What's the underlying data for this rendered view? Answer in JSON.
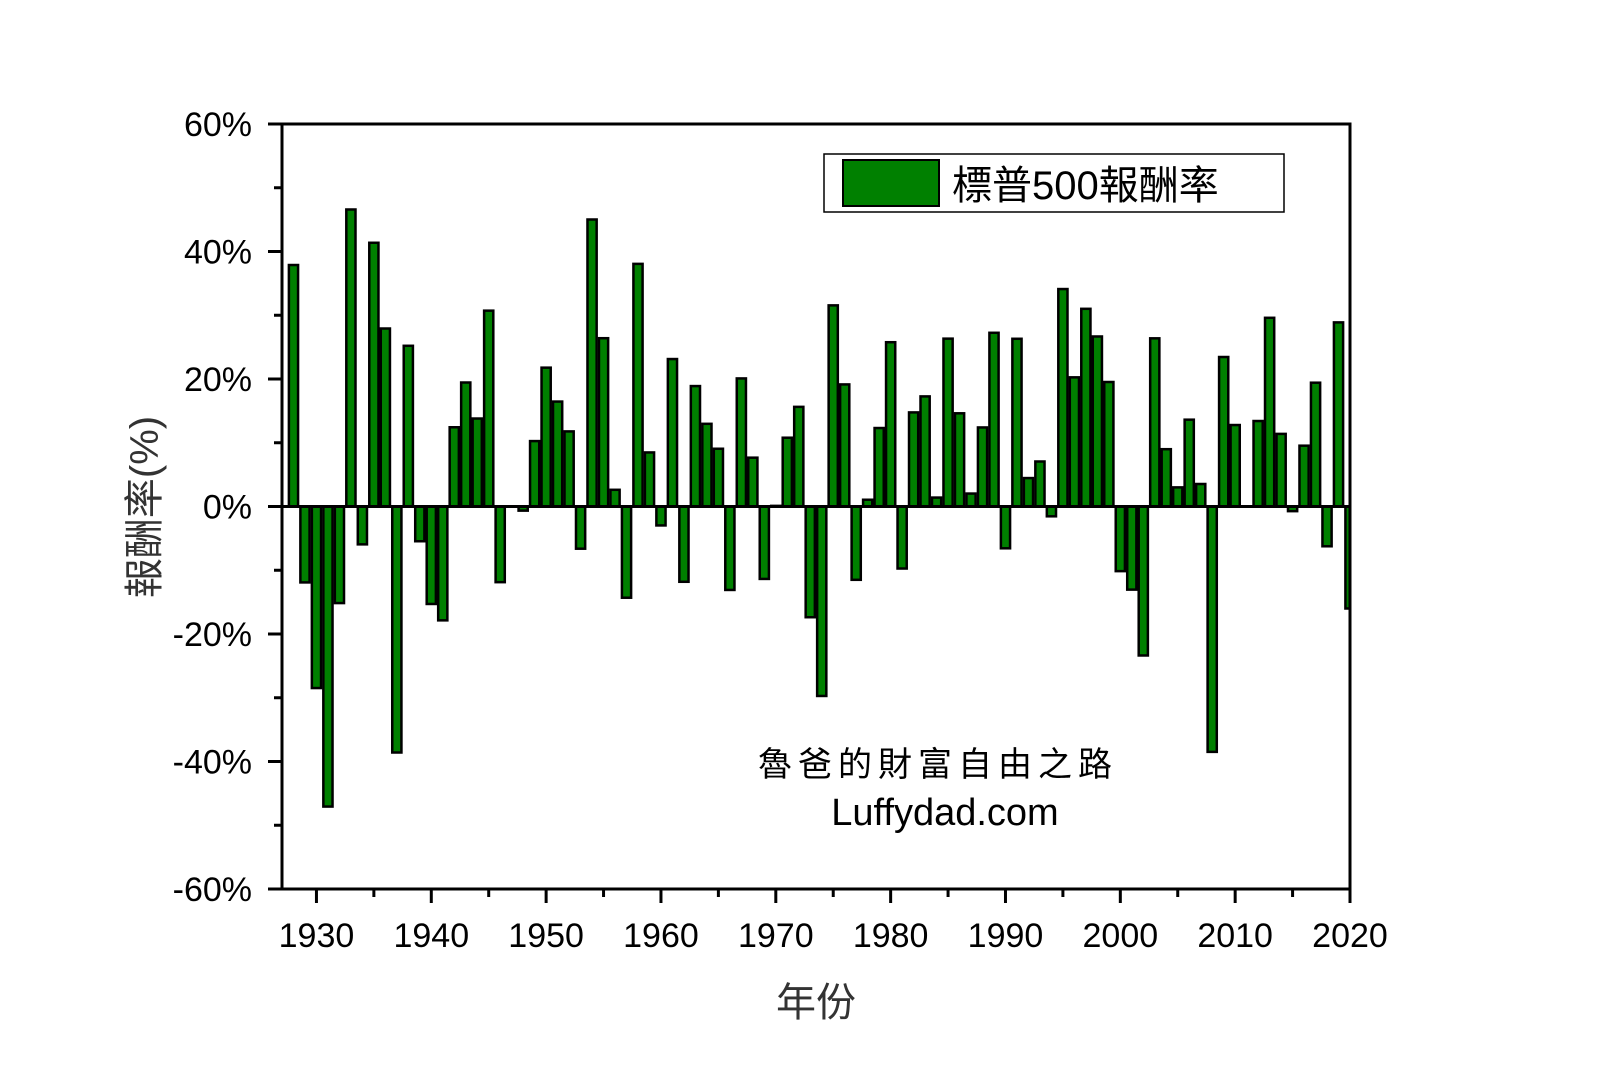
{
  "chart_data": {
    "type": "bar",
    "xlabel": "年份",
    "ylabel": "報酬率(%)",
    "xlim": [
      1927,
      2020
    ],
    "ylim": [
      -60,
      60
    ],
    "xticks": [
      1930,
      1940,
      1950,
      1960,
      1970,
      1980,
      1990,
      2000,
      2010,
      2020
    ],
    "xtick_labels": [
      "1930",
      "1940",
      "1950",
      "1960",
      "1970",
      "1980",
      "1990",
      "2000",
      "2010",
      "2020"
    ],
    "yticks": [
      -60,
      -40,
      -20,
      0,
      20,
      40,
      60
    ],
    "ytick_labels": [
      "-60%",
      "-40%",
      "-20%",
      "0%",
      "20%",
      "40%",
      "60%"
    ],
    "grid": false,
    "legend_placement": "top-right",
    "colors": {
      "bar": "#008000",
      "edge": "#000000"
    },
    "series": [
      {
        "name": "標普500報酬率",
        "x": [
          1928,
          1929,
          1930,
          1931,
          1932,
          1933,
          1934,
          1935,
          1936,
          1937,
          1938,
          1939,
          1940,
          1941,
          1942,
          1943,
          1944,
          1945,
          1946,
          1947,
          1948,
          1949,
          1950,
          1951,
          1952,
          1953,
          1954,
          1955,
          1956,
          1957,
          1958,
          1959,
          1960,
          1961,
          1962,
          1963,
          1964,
          1965,
          1966,
          1967,
          1968,
          1969,
          1970,
          1971,
          1972,
          1973,
          1974,
          1975,
          1976,
          1977,
          1978,
          1979,
          1980,
          1981,
          1982,
          1983,
          1984,
          1985,
          1986,
          1987,
          1988,
          1989,
          1990,
          1991,
          1992,
          1993,
          1994,
          1995,
          1996,
          1997,
          1998,
          1999,
          2000,
          2001,
          2002,
          2003,
          2004,
          2005,
          2006,
          2007,
          2008,
          2009,
          2010,
          2011,
          2012,
          2013,
          2014,
          2015,
          2016,
          2017,
          2018,
          2019,
          2020
        ],
        "values": [
          37.88,
          -11.91,
          -28.48,
          -47.07,
          -15.15,
          46.59,
          -5.94,
          41.37,
          27.92,
          -38.59,
          25.21,
          -5.45,
          -15.29,
          -17.86,
          12.43,
          19.45,
          13.8,
          30.72,
          -11.87,
          0.0,
          -0.65,
          10.26,
          21.78,
          16.46,
          11.78,
          -6.62,
          45.02,
          26.4,
          2.62,
          -14.31,
          38.06,
          8.48,
          -2.97,
          23.13,
          -11.81,
          18.89,
          12.97,
          9.06,
          -13.09,
          20.09,
          7.66,
          -11.36,
          0.1,
          10.79,
          15.63,
          -17.37,
          -29.72,
          31.55,
          19.15,
          -11.5,
          1.06,
          12.31,
          25.77,
          -9.73,
          14.76,
          17.27,
          1.4,
          26.33,
          14.62,
          2.03,
          12.4,
          27.25,
          -6.56,
          26.31,
          4.46,
          7.06,
          -1.54,
          34.11,
          20.26,
          31.01,
          26.67,
          19.53,
          -10.14,
          -13.04,
          -23.37,
          26.38,
          8.99,
          3.0,
          13.62,
          3.53,
          -38.49,
          23.45,
          12.78,
          0.0,
          13.41,
          29.6,
          11.39,
          -0.73,
          9.54,
          19.42,
          -6.24,
          28.88,
          -16.0
        ]
      }
    ],
    "annotations": [
      "魯爸的財富自由之路",
      "Luffydad.com"
    ]
  }
}
